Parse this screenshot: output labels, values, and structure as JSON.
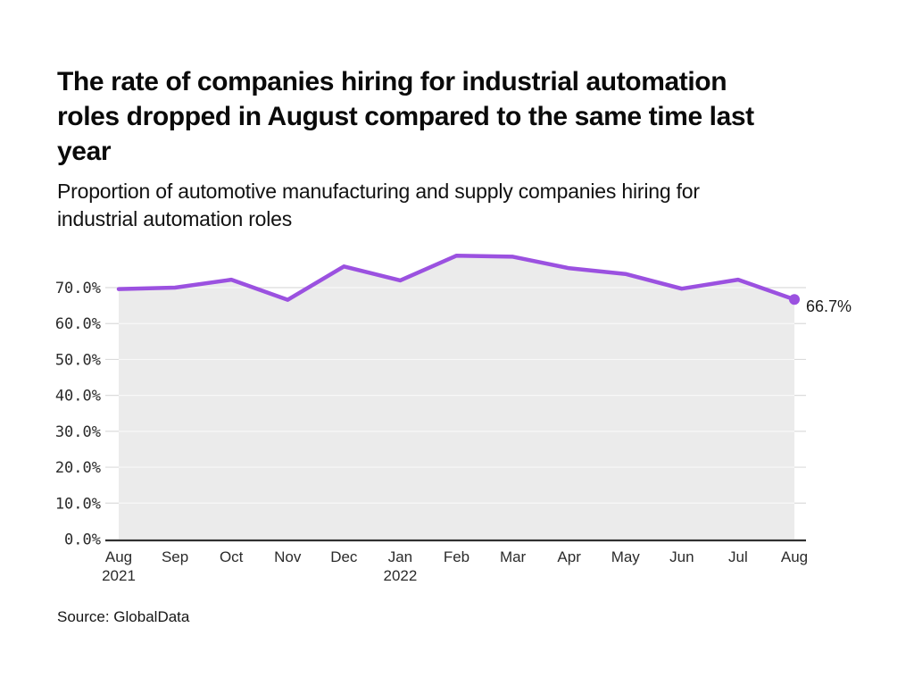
{
  "header": {
    "title": "The rate of companies hiring for industrial automation\nroles dropped in August compared to the same time last\nyear",
    "subtitle": "Proportion of automotive manufacturing and supply companies hiring for\nindustrial automation roles"
  },
  "chart_data": {
    "type": "line",
    "title": "The rate of companies hiring for industrial automation roles dropped in August compared to the same time last year",
    "subtitle": "Proportion of automotive manufacturing and supply companies hiring for industrial automation roles",
    "categories": [
      "Aug 2021",
      "Sep",
      "Oct",
      "Nov",
      "Dec",
      "Jan 2022",
      "Feb",
      "Mar",
      "Apr",
      "May",
      "Jun",
      "Jul",
      "Aug"
    ],
    "x_ticks": [
      {
        "month": "Aug",
        "year": "2021"
      },
      {
        "month": "Sep"
      },
      {
        "month": "Oct"
      },
      {
        "month": "Nov"
      },
      {
        "month": "Dec"
      },
      {
        "month": "Jan",
        "year": "2022"
      },
      {
        "month": "Feb"
      },
      {
        "month": "Mar"
      },
      {
        "month": "Apr"
      },
      {
        "month": "May"
      },
      {
        "month": "Jun"
      },
      {
        "month": "Jul"
      },
      {
        "month": "Aug"
      }
    ],
    "series": [
      {
        "name": "Proportion of companies hiring for industrial automation roles",
        "values": [
          69.6,
          70.0,
          72.2,
          66.6,
          75.9,
          72.0,
          78.9,
          78.6,
          75.4,
          73.8,
          69.7,
          72.2,
          66.7
        ]
      }
    ],
    "end_label": "66.7%",
    "xlabel": "",
    "ylabel": "",
    "ylim": [
      0,
      80
    ],
    "yticks": [
      0,
      10,
      20,
      30,
      40,
      50,
      60,
      70
    ],
    "ytick_labels": [
      "0.0%",
      "10.0%",
      "20.0%",
      "30.0%",
      "40.0%",
      "50.0%",
      "60.0%",
      "70.0%"
    ],
    "grid": true,
    "legend": false,
    "colors": {
      "line": "#9B51E0",
      "marker": "#9B51E0",
      "area_fill": "#ebebeb",
      "gridline": "#dcdcdc",
      "gridline_on_fill": "#f8f8f8",
      "axis_line": "#303030",
      "tick_label": "#2b2b2b",
      "end_label": "#1a1a1a"
    }
  },
  "footer": {
    "source": "Source: GlobalData"
  }
}
